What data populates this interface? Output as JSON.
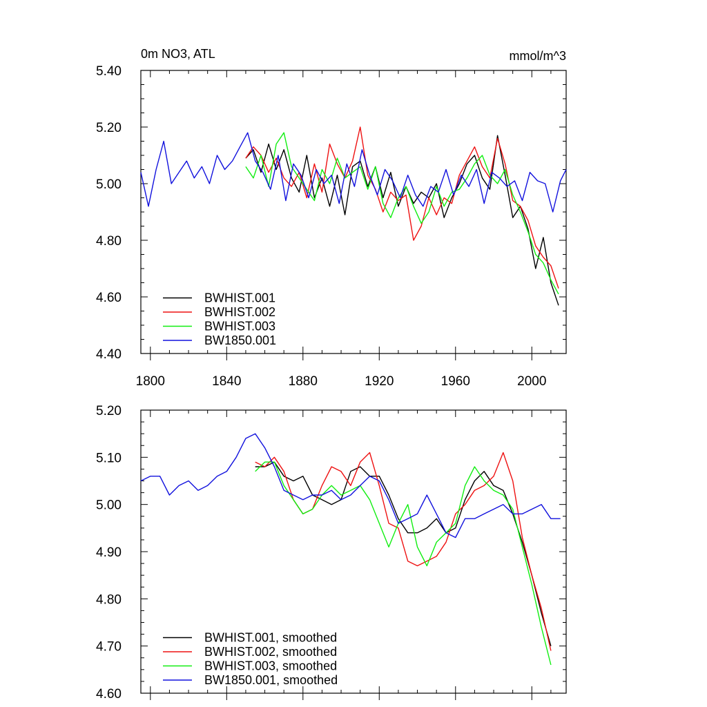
{
  "chart_data": [
    {
      "type": "line",
      "title_left": "0m NO3, ATL",
      "title_right": "mmol/m^3",
      "xlabel": "",
      "ylabel": "",
      "xlim": [
        1795,
        2018
      ],
      "ylim": [
        4.4,
        5.4
      ],
      "xticks": [
        1800,
        1840,
        1880,
        1920,
        1960,
        2000
      ],
      "xtick_labels": [
        "1800",
        "1840",
        "1880",
        "1920",
        "1960",
        "2000"
      ],
      "yticks": [
        4.4,
        4.6,
        4.8,
        5.0,
        5.2,
        5.4
      ],
      "ytick_labels": [
        "4.40",
        "4.60",
        "4.80",
        "5.00",
        "5.20",
        "5.40"
      ],
      "legend_position": "lower-left",
      "grid": false,
      "series": [
        {
          "name": "BWHIST.001",
          "color": "#000000",
          "x": [
            1850,
            1854,
            1858,
            1862,
            1866,
            1870,
            1874,
            1878,
            1882,
            1886,
            1890,
            1894,
            1898,
            1902,
            1906,
            1910,
            1914,
            1918,
            1922,
            1926,
            1930,
            1934,
            1938,
            1942,
            1946,
            1950,
            1954,
            1958,
            1962,
            1966,
            1970,
            1974,
            1978,
            1982,
            1986,
            1990,
            1994,
            1998,
            2002,
            2006,
            2010,
            2014
          ],
          "y": [
            5.09,
            5.12,
            5.04,
            5.14,
            5.05,
            5.12,
            5.02,
            4.97,
            5.1,
            4.95,
            5.02,
            4.92,
            5.03,
            4.89,
            5.06,
            5.08,
            4.99,
            5.06,
            4.95,
            5.04,
            4.92,
            4.99,
            4.93,
            4.97,
            4.95,
            5.0,
            4.88,
            4.95,
            5.0,
            5.07,
            5.1,
            5.02,
            4.98,
            5.17,
            5.03,
            4.88,
            4.92,
            4.84,
            4.7,
            4.81,
            4.65,
            4.57
          ]
        },
        {
          "name": "BWHIST.002",
          "color": "#ee1111",
          "x": [
            1850,
            1854,
            1858,
            1862,
            1866,
            1870,
            1874,
            1878,
            1882,
            1886,
            1890,
            1894,
            1898,
            1902,
            1906,
            1910,
            1914,
            1918,
            1922,
            1926,
            1930,
            1934,
            1938,
            1942,
            1946,
            1950,
            1954,
            1958,
            1962,
            1966,
            1970,
            1974,
            1978,
            1982,
            1986,
            1990,
            1994,
            1998,
            2002,
            2006,
            2010,
            2014
          ],
          "y": [
            5.09,
            5.13,
            5.1,
            5.04,
            5.09,
            5.02,
            4.99,
            5.04,
            4.95,
            5.07,
            4.97,
            5.14,
            5.07,
            5.02,
            5.08,
            5.2,
            5.03,
            4.98,
            4.9,
            4.97,
            4.94,
            4.96,
            4.8,
            4.85,
            4.95,
            4.89,
            4.95,
            4.93,
            5.03,
            5.08,
            5.13,
            5.06,
            5.02,
            5.16,
            5.07,
            4.94,
            4.92,
            4.87,
            4.78,
            4.74,
            4.71,
            4.63
          ]
        },
        {
          "name": "BWHIST.003",
          "color": "#11ee11",
          "x": [
            1850,
            1854,
            1858,
            1862,
            1866,
            1870,
            1874,
            1878,
            1882,
            1886,
            1890,
            1894,
            1898,
            1902,
            1906,
            1910,
            1914,
            1918,
            1922,
            1926,
            1930,
            1934,
            1938,
            1942,
            1946,
            1950,
            1954,
            1958,
            1962,
            1966,
            1970,
            1974,
            1978,
            1982,
            1986,
            1990,
            1994,
            1998,
            2002,
            2006,
            2010,
            2014
          ],
          "y": [
            5.06,
            5.02,
            5.1,
            4.99,
            5.14,
            5.18,
            5.06,
            5.02,
            4.98,
            4.94,
            5.05,
            5.0,
            5.09,
            5.02,
            5.04,
            5.06,
            4.98,
            5.06,
            4.93,
            4.88,
            4.95,
            4.99,
            4.92,
            4.86,
            4.9,
            4.99,
            4.92,
            4.97,
            4.98,
            5.02,
            5.07,
            5.1,
            5.03,
            5.0,
            5.05,
            4.96,
            4.9,
            4.83,
            4.75,
            4.72,
            4.66,
            4.61
          ]
        },
        {
          "name": "BW1850.001",
          "color": "#1111dd",
          "x": [
            1795,
            1799,
            1803,
            1807,
            1811,
            1815,
            1819,
            1823,
            1827,
            1831,
            1835,
            1839,
            1843,
            1847,
            1851,
            1855,
            1859,
            1863,
            1867,
            1871,
            1875,
            1879,
            1883,
            1887,
            1891,
            1895,
            1899,
            1903,
            1907,
            1911,
            1915,
            1919,
            1923,
            1927,
            1931,
            1935,
            1939,
            1943,
            1947,
            1951,
            1955,
            1959,
            1963,
            1967,
            1971,
            1975,
            1979,
            1983,
            1987,
            1991,
            1995,
            1999,
            2003,
            2007,
            2011,
            2015,
            2018
          ],
          "y": [
            5.04,
            4.92,
            5.05,
            5.15,
            5.0,
            5.04,
            5.08,
            5.02,
            5.06,
            5.0,
            5.1,
            5.05,
            5.08,
            5.13,
            5.18,
            5.08,
            5.04,
            4.98,
            5.1,
            4.94,
            5.07,
            5.03,
            4.95,
            5.05,
            5.0,
            5.03,
            4.93,
            5.07,
            4.99,
            5.12,
            5.03,
            4.96,
            5.05,
            5.01,
            4.95,
            5.03,
            4.96,
            4.92,
            4.99,
            4.97,
            5.05,
            4.96,
            5.03,
            4.99,
            5.05,
            4.93,
            5.04,
            5.02,
            4.99,
            5.01,
            4.94,
            5.04,
            5.01,
            5.0,
            4.9,
            5.01,
            5.05
          ]
        }
      ]
    },
    {
      "type": "line",
      "xlabel": "",
      "ylabel": "",
      "xlim": [
        1795,
        2018
      ],
      "ylim": [
        4.6,
        5.2
      ],
      "xticks": [
        1800,
        1840,
        1880,
        1920,
        1960,
        2000
      ],
      "yticks": [
        4.6,
        4.7,
        4.8,
        4.9,
        5.0,
        5.1,
        5.2
      ],
      "ytick_labels": [
        "4.60",
        "4.70",
        "4.80",
        "4.90",
        "5.00",
        "5.10",
        "5.20"
      ],
      "legend_position": "lower-left",
      "grid": false,
      "series": [
        {
          "name": "BWHIST.001, smoothed",
          "color": "#000000",
          "x": [
            1855,
            1860,
            1865,
            1870,
            1875,
            1880,
            1885,
            1890,
            1895,
            1900,
            1905,
            1910,
            1915,
            1920,
            1925,
            1930,
            1935,
            1940,
            1945,
            1950,
            1955,
            1960,
            1965,
            1970,
            1975,
            1980,
            1985,
            1990,
            1995,
            2000,
            2005,
            2010
          ],
          "y": [
            5.08,
            5.08,
            5.09,
            5.06,
            5.05,
            5.06,
            5.02,
            5.01,
            5.0,
            5.01,
            5.07,
            5.08,
            5.06,
            5.06,
            5.02,
            4.97,
            4.94,
            4.94,
            4.95,
            4.97,
            4.94,
            4.95,
            5.01,
            5.05,
            5.07,
            5.04,
            5.03,
            4.98,
            4.92,
            4.85,
            4.77,
            4.7
          ]
        },
        {
          "name": "BWHIST.002, smoothed",
          "color": "#ee1111",
          "x": [
            1855,
            1860,
            1865,
            1870,
            1875,
            1880,
            1885,
            1890,
            1895,
            1900,
            1905,
            1910,
            1915,
            1920,
            1925,
            1930,
            1935,
            1940,
            1945,
            1950,
            1955,
            1960,
            1965,
            1970,
            1975,
            1980,
            1985,
            1990,
            1995,
            2000,
            2005,
            2010
          ],
          "y": [
            5.09,
            5.08,
            5.1,
            5.07,
            5.01,
            4.98,
            4.99,
            5.04,
            5.08,
            5.07,
            5.04,
            5.09,
            5.11,
            5.04,
            4.96,
            4.95,
            4.88,
            4.87,
            4.88,
            4.89,
            4.92,
            4.98,
            5.0,
            5.03,
            5.04,
            5.06,
            5.11,
            5.05,
            4.93,
            4.85,
            4.78,
            4.69
          ]
        },
        {
          "name": "BWHIST.003, smoothed",
          "color": "#11ee11",
          "x": [
            1855,
            1860,
            1865,
            1870,
            1875,
            1880,
            1885,
            1890,
            1895,
            1900,
            1905,
            1910,
            1915,
            1920,
            1925,
            1930,
            1935,
            1940,
            1945,
            1950,
            1955,
            1960,
            1965,
            1970,
            1975,
            1980,
            1985,
            1990,
            1995,
            2000,
            2005,
            2010
          ],
          "y": [
            5.07,
            5.09,
            5.09,
            5.04,
            5.01,
            4.98,
            4.99,
            5.02,
            5.04,
            5.02,
            5.03,
            5.04,
            5.01,
            4.96,
            4.91,
            4.96,
            5.0,
            4.91,
            4.87,
            4.92,
            4.94,
            4.96,
            5.04,
            5.08,
            5.05,
            5.03,
            5.02,
            4.99,
            4.91,
            4.83,
            4.74,
            4.66
          ]
        },
        {
          "name": "BW1850.001, smoothed",
          "color": "#1111dd",
          "x": [
            1795,
            1800,
            1805,
            1810,
            1815,
            1820,
            1825,
            1830,
            1835,
            1840,
            1845,
            1850,
            1855,
            1860,
            1865,
            1870,
            1875,
            1880,
            1885,
            1890,
            1895,
            1900,
            1905,
            1910,
            1915,
            1920,
            1925,
            1930,
            1935,
            1940,
            1945,
            1950,
            1955,
            1960,
            1965,
            1970,
            1975,
            1980,
            1985,
            1990,
            1995,
            2000,
            2005,
            2010,
            2015
          ],
          "y": [
            5.05,
            5.06,
            5.06,
            5.02,
            5.04,
            5.05,
            5.03,
            5.04,
            5.06,
            5.07,
            5.1,
            5.14,
            5.15,
            5.12,
            5.08,
            5.03,
            5.02,
            5.01,
            5.02,
            5.02,
            5.03,
            5.01,
            5.02,
            5.04,
            5.06,
            5.05,
            5.01,
            4.96,
            4.97,
            4.98,
            5.02,
            4.98,
            4.94,
            4.93,
            4.97,
            4.97,
            4.98,
            4.99,
            5.0,
            4.98,
            4.98,
            4.99,
            5.0,
            4.97,
            4.97
          ]
        }
      ]
    }
  ]
}
